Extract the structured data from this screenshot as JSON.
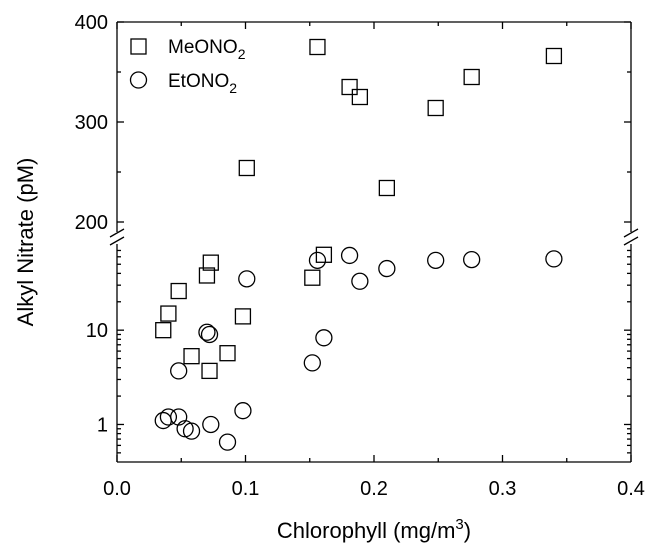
{
  "chart_data": {
    "type": "scatter",
    "xlabel": "Chlorophyll (mg/m",
    "xlabel_sup": "3",
    "xlabel_end": ")",
    "ylabel": "Alkyl Nitrate (pM)",
    "xlim": [
      0.0,
      0.4
    ],
    "x_ticks": [
      "0.0",
      "0.1",
      "0.2",
      "0.3",
      "0.4"
    ],
    "y_axis": {
      "scale": "broken",
      "lower_segment": {
        "scale": "log",
        "range": [
          0.4,
          80
        ],
        "tick_labels": [
          "1",
          "10"
        ]
      },
      "upper_segment": {
        "scale": "linear",
        "range": [
          190,
          400
        ],
        "tick_labels": [
          "200",
          "300",
          "400"
        ]
      }
    },
    "legend": {
      "position": "top-left"
    },
    "series": [
      {
        "name": "MeONO",
        "name_sub": "2",
        "marker": "square",
        "points": [
          [
            0.036,
            10
          ],
          [
            0.04,
            15
          ],
          [
            0.048,
            26
          ],
          [
            0.058,
            5.3
          ],
          [
            0.07,
            38
          ],
          [
            0.072,
            3.7
          ],
          [
            0.073,
            52
          ],
          [
            0.086,
            5.7
          ],
          [
            0.098,
            14
          ],
          [
            0.101,
            254
          ],
          [
            0.152,
            36
          ],
          [
            0.156,
            375
          ],
          [
            0.161,
            63
          ],
          [
            0.181,
            335
          ],
          [
            0.189,
            325
          ],
          [
            0.21,
            234
          ],
          [
            0.248,
            314
          ],
          [
            0.276,
            345
          ],
          [
            0.34,
            366
          ]
        ]
      },
      {
        "name": "EtONO",
        "name_sub": "2",
        "marker": "circle",
        "points": [
          [
            0.036,
            1.1
          ],
          [
            0.04,
            1.2
          ],
          [
            0.048,
            1.2
          ],
          [
            0.048,
            3.7
          ],
          [
            0.053,
            0.9
          ],
          [
            0.058,
            0.85
          ],
          [
            0.07,
            9.5
          ],
          [
            0.072,
            9
          ],
          [
            0.073,
            1.0
          ],
          [
            0.086,
            0.65
          ],
          [
            0.098,
            1.4
          ],
          [
            0.101,
            35
          ],
          [
            0.152,
            4.5
          ],
          [
            0.156,
            55
          ],
          [
            0.161,
            8.3
          ],
          [
            0.181,
            62
          ],
          [
            0.189,
            33
          ],
          [
            0.21,
            45
          ],
          [
            0.248,
            55
          ],
          [
            0.276,
            56
          ],
          [
            0.34,
            57
          ]
        ]
      }
    ]
  }
}
